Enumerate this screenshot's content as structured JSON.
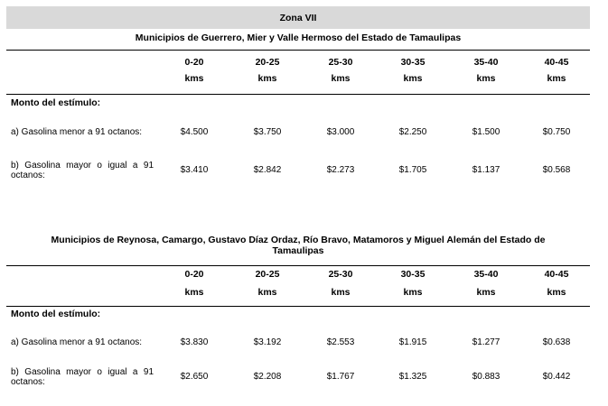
{
  "zone_title": "Zona VII",
  "sections": [
    {
      "title": "Municipios de Guerrero, Mier y Valle Hermoso del Estado de Tamaulipas",
      "ranges": [
        "0-20",
        "20-25",
        "25-30",
        "30-35",
        "35-40",
        "40-45"
      ],
      "unit": "kms",
      "stimulus_label": "Monto del estímulo:",
      "rows": [
        {
          "label": "a) Gasolina menor a 91 octanos:",
          "values": [
            "$4.500",
            "$3.750",
            "$3.000",
            "$2.250",
            "$1.500",
            "$0.750"
          ]
        },
        {
          "label": "b) Gasolina mayor o igual a 91 octanos:",
          "values": [
            "$3.410",
            "$2.842",
            "$2.273",
            "$1.705",
            "$1.137",
            "$0.568"
          ]
        }
      ]
    },
    {
      "title": "Municipios de Reynosa, Camargo, Gustavo Díaz Ordaz, Río Bravo, Matamoros y Miguel Alemán del Estado de Tamaulipas",
      "ranges": [
        "0-20",
        "20-25",
        "25-30",
        "30-35",
        "35-40",
        "40-45"
      ],
      "unit": "kms",
      "stimulus_label": "Monto del estímulo:",
      "rows": [
        {
          "label": "a) Gasolina menor a 91 octanos:",
          "values": [
            "$3.830",
            "$3.192",
            "$2.553",
            "$1.915",
            "$1.277",
            "$0.638"
          ]
        },
        {
          "label": "b) Gasolina mayor o igual a 91 octanos:",
          "values": [
            "$2.650",
            "$2.208",
            "$1.767",
            "$1.325",
            "$0.883",
            "$0.442"
          ]
        }
      ]
    }
  ]
}
